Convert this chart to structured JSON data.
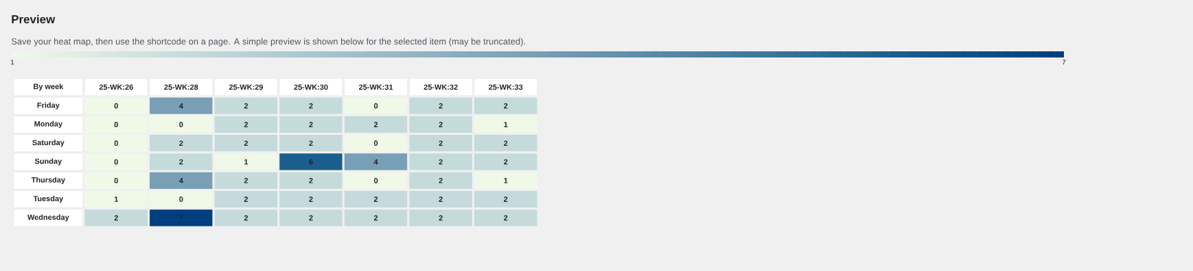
{
  "chart_data": {
    "type": "heatmap",
    "title": "Preview",
    "subtitle": "Save your heat map, then use the shortcode on a page. A simple preview is shown below for the selected item (may be truncated).",
    "xlabel": "By week",
    "categories": [
      "25-WK:26",
      "25-WK:28",
      "25-WK:29",
      "25-WK:30",
      "25-WK:31",
      "25-WK:32",
      "25-WK:33"
    ],
    "y_categories": [
      "Friday",
      "Monday",
      "Saturday",
      "Sunday",
      "Thursday",
      "Tuesday",
      "Wednesday"
    ],
    "cells": [
      [
        0,
        4,
        2,
        2,
        0,
        2,
        2
      ],
      [
        0,
        0,
        2,
        2,
        2,
        2,
        1
      ],
      [
        0,
        2,
        2,
        2,
        0,
        2,
        2
      ],
      [
        0,
        2,
        1,
        6,
        4,
        2,
        2
      ],
      [
        0,
        4,
        2,
        2,
        0,
        2,
        1
      ],
      [
        1,
        0,
        2,
        2,
        2,
        2,
        2
      ],
      [
        2,
        7,
        2,
        2,
        2,
        2,
        2
      ]
    ],
    "clim": [
      1,
      7
    ],
    "cticks": [
      1,
      7
    ],
    "data_labels": true
  }
}
